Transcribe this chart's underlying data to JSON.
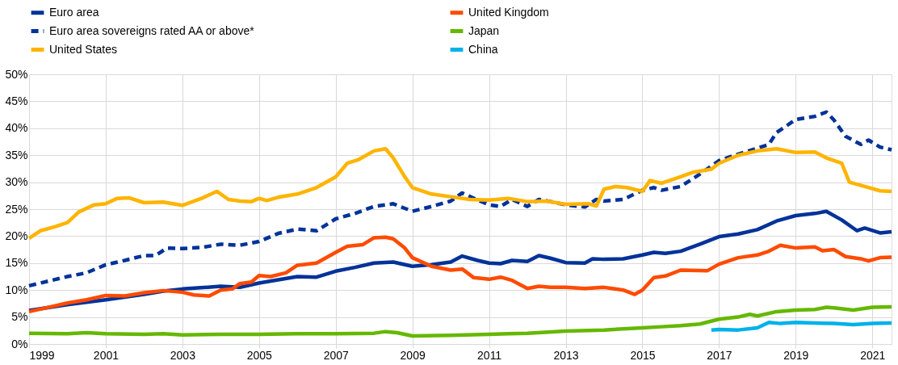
{
  "chart_data": {
    "type": "line",
    "legend": "top left",
    "grid": true,
    "marker": "none",
    "ylim": [
      0,
      50
    ],
    "yticks": [
      {
        "value": 0,
        "label": "0%"
      },
      {
        "value": 5,
        "label": "5%"
      },
      {
        "value": 10,
        "label": "10%"
      },
      {
        "value": 15,
        "label": "15%"
      },
      {
        "value": 20,
        "label": "20%"
      },
      {
        "value": 25,
        "label": "25%"
      },
      {
        "value": 30,
        "label": "30%"
      },
      {
        "value": 35,
        "label": "35%"
      },
      {
        "value": 40,
        "label": "40%"
      },
      {
        "value": 45,
        "label": "45%"
      },
      {
        "value": 50,
        "label": "50%"
      }
    ],
    "xlim": [
      1999,
      2021.5
    ],
    "xticks": [
      1999,
      2001,
      2003,
      2005,
      2007,
      2009,
      2011,
      2013,
      2015,
      2017,
      2019,
      2021
    ],
    "series": [
      {
        "name": "Euro area",
        "color": "#003299",
        "line_style": "solid",
        "x": [
          1999,
          2000,
          2001,
          2002,
          2002.5,
          2003,
          2004,
          2004.5,
          2005,
          2006,
          2006.5,
          2007,
          2007.5,
          2008,
          2008.5,
          2009,
          2009.5,
          2010,
          2010.3,
          2010.7,
          2011,
          2011.3,
          2011.6,
          2012,
          2012.3,
          2012.6,
          2013,
          2013.5,
          2013.7,
          2014,
          2014.5,
          2015,
          2015.3,
          2015.6,
          2016,
          2016.5,
          2017,
          2017.5,
          2018,
          2018.5,
          2019,
          2019.5,
          2019.8,
          2020.2,
          2020.6,
          2020.8,
          2021.2,
          2021.5
        ],
        "values": [
          6.2,
          7.3,
          8.2,
          9.2,
          9.8,
          10.2,
          10.7,
          10.5,
          11.3,
          12.5,
          12.4,
          13.5,
          14.2,
          15.0,
          15.2,
          14.4,
          14.7,
          15.2,
          16.3,
          15.5,
          15.0,
          14.9,
          15.5,
          15.3,
          16.4,
          15.9,
          15.1,
          15.0,
          15.8,
          15.7,
          15.8,
          16.5,
          17.0,
          16.8,
          17.2,
          18.5,
          19.9,
          20.4,
          21.2,
          22.8,
          23.8,
          24.2,
          24.6,
          23.0,
          21.0,
          21.5,
          20.6,
          20.8
        ]
      },
      {
        "name": "United Kingdom",
        "color": "#ff4b00",
        "line_style": "solid",
        "x": [
          1999,
          1999.5,
          2000,
          2000.5,
          2001,
          2001.5,
          2002,
          2002.5,
          2003,
          2003.3,
          2003.7,
          2004,
          2004.3,
          2004.5,
          2004.8,
          2005,
          2005.3,
          2005.7,
          2006,
          2006.5,
          2007,
          2007.3,
          2007.7,
          2008,
          2008.3,
          2008.5,
          2008.8,
          2009,
          2009.5,
          2010,
          2010.3,
          2010.6,
          2011,
          2011.3,
          2011.6,
          2012,
          2012.3,
          2012.6,
          2013,
          2013.5,
          2014,
          2014.5,
          2014.8,
          2015,
          2015.3,
          2015.6,
          2016,
          2016.7,
          2017,
          2017.5,
          2018,
          2018.3,
          2018.6,
          2019,
          2019.5,
          2019.7,
          2020,
          2020.3,
          2020.7,
          2020.9,
          2021.2,
          2021.5
        ],
        "values": [
          6.0,
          6.8,
          7.6,
          8.2,
          9.0,
          8.9,
          9.5,
          9.9,
          9.6,
          9.1,
          8.9,
          10.0,
          10.2,
          11.2,
          11.5,
          12.7,
          12.5,
          13.2,
          14.6,
          15.0,
          17.0,
          18.1,
          18.4,
          19.7,
          19.8,
          19.5,
          17.8,
          16.0,
          14.4,
          13.7,
          13.9,
          12.3,
          12.0,
          12.4,
          11.8,
          10.3,
          10.7,
          10.5,
          10.5,
          10.3,
          10.5,
          10.0,
          9.2,
          10.0,
          12.3,
          12.6,
          13.7,
          13.6,
          14.8,
          16.0,
          16.5,
          17.2,
          18.3,
          17.8,
          18.0,
          17.3,
          17.5,
          16.2,
          15.8,
          15.4,
          16.0,
          16.1
        ]
      },
      {
        "name": "Euro area sovereigns rated AA or above*",
        "color": "#003299",
        "line_style": "dashed",
        "x": [
          1999,
          2000,
          2000.5,
          2001,
          2001.5,
          2002,
          2002.3,
          2002.6,
          2003,
          2003.5,
          2004,
          2004.5,
          2005,
          2005.5,
          2006,
          2006.5,
          2007,
          2007.5,
          2008,
          2008.5,
          2009,
          2009.5,
          2010,
          2010.3,
          2010.7,
          2011,
          2011.3,
          2011.6,
          2012,
          2012.3,
          2012.6,
          2013,
          2013.5,
          2013.8,
          2014,
          2014.5,
          2015,
          2015.3,
          2015.5,
          2016,
          2016.5,
          2017,
          2017.5,
          2018,
          2018.3,
          2018.5,
          2019,
          2019.5,
          2019.8,
          2020,
          2020.3,
          2020.7,
          2020.9,
          2021.2,
          2021.5
        ],
        "values": [
          10.8,
          12.5,
          13.2,
          14.7,
          15.5,
          16.4,
          16.4,
          17.8,
          17.7,
          17.9,
          18.5,
          18.3,
          19.0,
          20.5,
          21.3,
          21.0,
          23.2,
          24.2,
          25.5,
          26.0,
          24.6,
          25.5,
          26.5,
          28.0,
          26.7,
          25.8,
          25.5,
          26.8,
          25.5,
          26.8,
          26.4,
          25.8,
          25.4,
          26.8,
          26.5,
          26.8,
          28.5,
          29.0,
          28.5,
          29.2,
          31.5,
          34.0,
          35.2,
          36.3,
          37.0,
          39.2,
          41.6,
          42.2,
          43.0,
          41.5,
          38.5,
          37.0,
          37.8,
          36.5,
          36.0
        ]
      },
      {
        "name": "Japan",
        "color": "#65b800",
        "line_style": "solid",
        "x": [
          1999,
          2000,
          2000.5,
          2001,
          2002,
          2002.5,
          2003,
          2004,
          2005,
          2006,
          2007,
          2008,
          2008.3,
          2008.6,
          2009,
          2010,
          2011,
          2011.5,
          2012,
          2013,
          2014,
          2015,
          2015.5,
          2016,
          2016.5,
          2017,
          2017.5,
          2017.8,
          2018,
          2018.5,
          2019,
          2019.5,
          2019.8,
          2020,
          2020.5,
          2021,
          2021.5
        ],
        "values": [
          2.0,
          1.9,
          2.1,
          1.9,
          1.8,
          1.9,
          1.7,
          1.8,
          1.8,
          1.9,
          1.9,
          2.0,
          2.3,
          2.1,
          1.5,
          1.6,
          1.8,
          1.9,
          2.0,
          2.4,
          2.6,
          3.0,
          3.2,
          3.4,
          3.7,
          4.6,
          5.0,
          5.5,
          5.2,
          6.0,
          6.3,
          6.4,
          6.8,
          6.7,
          6.3,
          6.8,
          6.9
        ]
      },
      {
        "name": "United States",
        "color": "#ffb400",
        "line_style": "solid",
        "x": [
          1999,
          1999.3,
          1999.7,
          2000,
          2000.3,
          2000.7,
          2001,
          2001.3,
          2001.6,
          2002,
          2002.5,
          2003,
          2003.5,
          2003.9,
          2004.2,
          2004.5,
          2004.8,
          2005,
          2005.2,
          2005.5,
          2006,
          2006.5,
          2007,
          2007.3,
          2007.6,
          2008,
          2008.3,
          2008.5,
          2008.8,
          2009,
          2009.5,
          2010,
          2010.5,
          2011,
          2011.5,
          2012,
          2012.5,
          2013,
          2013.6,
          2013.8,
          2014,
          2014.3,
          2014.6,
          2015,
          2015.2,
          2015.5,
          2016,
          2016.3,
          2016.8,
          2017,
          2017.5,
          2018,
          2018.5,
          2019,
          2019.5,
          2019.8,
          2020.2,
          2020.4,
          2020.8,
          2021.2,
          2021.5
        ],
        "values": [
          19.6,
          21.0,
          21.8,
          22.5,
          24.5,
          25.8,
          26.0,
          27.0,
          27.1,
          26.2,
          26.3,
          25.7,
          27.0,
          28.3,
          26.8,
          26.5,
          26.4,
          27.0,
          26.6,
          27.2,
          27.8,
          29.0,
          31.0,
          33.5,
          34.2,
          35.8,
          36.2,
          34.5,
          31.0,
          29.0,
          27.8,
          27.3,
          26.8,
          26.7,
          27.0,
          26.4,
          26.5,
          25.9,
          26.0,
          25.6,
          28.7,
          29.2,
          29.0,
          28.3,
          30.3,
          29.8,
          31.0,
          31.8,
          32.4,
          33.5,
          35.0,
          35.8,
          36.2,
          35.5,
          35.6,
          34.5,
          33.5,
          30.0,
          29.2,
          28.4,
          28.3
        ]
      },
      {
        "name": "China",
        "color": "#00b1ea",
        "line_style": "solid",
        "x": [
          2016.8,
          2017,
          2017.5,
          2018,
          2018.3,
          2018.6,
          2019,
          2019.5,
          2020,
          2020.5,
          2021,
          2021.5
        ],
        "values": [
          2.6,
          2.7,
          2.6,
          3.0,
          4.0,
          3.8,
          4.0,
          3.9,
          3.8,
          3.6,
          3.8,
          3.9
        ]
      }
    ]
  }
}
